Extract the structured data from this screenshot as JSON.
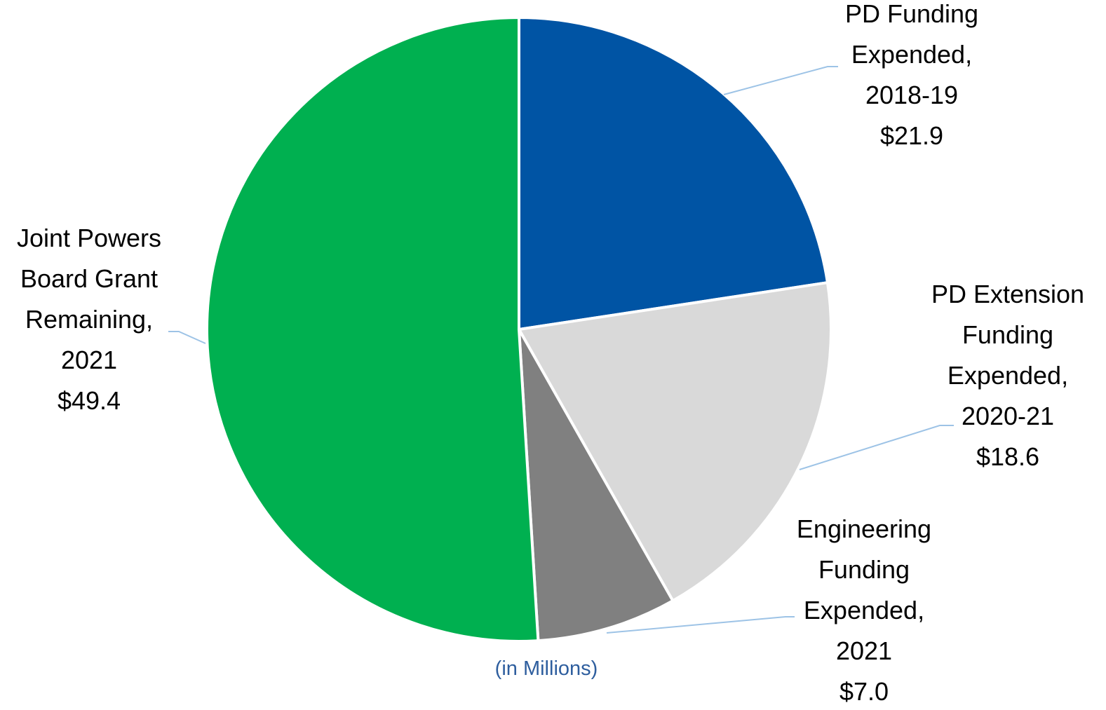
{
  "chart_data": {
    "type": "pie",
    "categories": [
      "PD Funding Expended, 2018-19",
      "PD Extension Funding Expended, 2020-21",
      "Engineering Funding Expended, 2021",
      "Joint Powers Board Grant Remaining, 2021"
    ],
    "values": [
      21.9,
      18.6,
      7.0,
      49.4
    ],
    "value_labels": [
      "$21.9",
      "$18.6",
      "$7.0",
      "$49.4"
    ],
    "colors": [
      "#0054a4",
      "#d9d9d9",
      "#808080",
      "#00b050"
    ],
    "annotation": "(in Millions)"
  }
}
